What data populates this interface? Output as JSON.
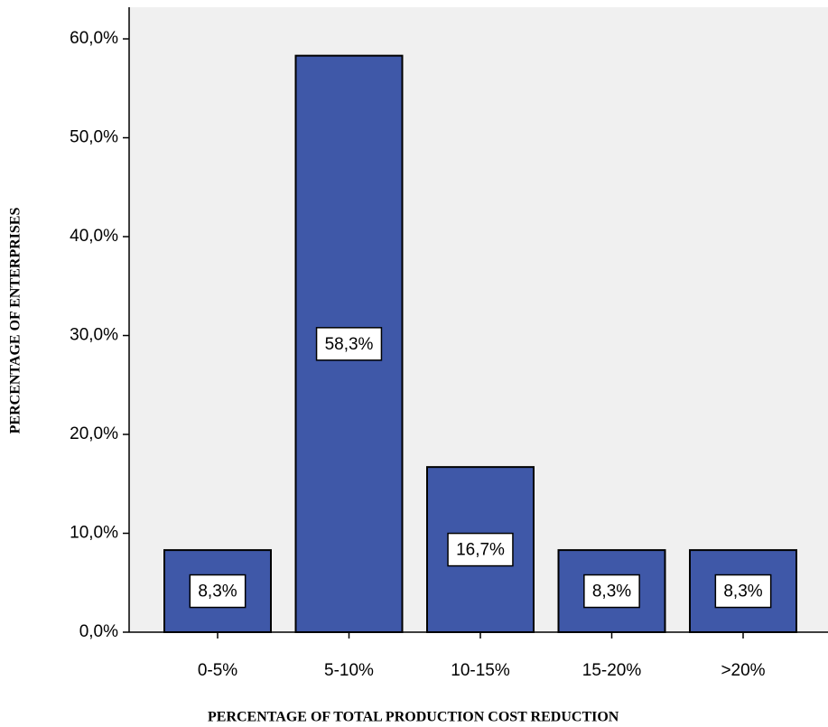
{
  "chart_data": {
    "type": "bar",
    "x_label": "PERCENTAGE OF TOTAL PRODUCTION COST REDUCTION",
    "y_label": "PERCENTAGE OF ENTERPRISES",
    "categories": [
      "0-5%",
      "5-10%",
      "10-15%",
      "15-20%",
      ">20%"
    ],
    "values": [
      8.3,
      58.3,
      16.7,
      8.3,
      8.3
    ],
    "value_labels": [
      "8,3%",
      "58,3%",
      "16,7%",
      "8,3%",
      "8,3%"
    ],
    "color": "#3f58a8",
    "ylim": [
      0,
      63.2
    ],
    "yticks": [
      {
        "value": 0,
        "label": "0,0%"
      },
      {
        "value": 10,
        "label": "10,0%"
      },
      {
        "value": 20,
        "label": "20,0%"
      },
      {
        "value": 30,
        "label": "30,0%"
      },
      {
        "value": 40,
        "label": "40,0%"
      },
      {
        "value": 50,
        "label": "50,0%"
      },
      {
        "value": 60,
        "label": "60,0%"
      }
    ],
    "grid": false
  }
}
